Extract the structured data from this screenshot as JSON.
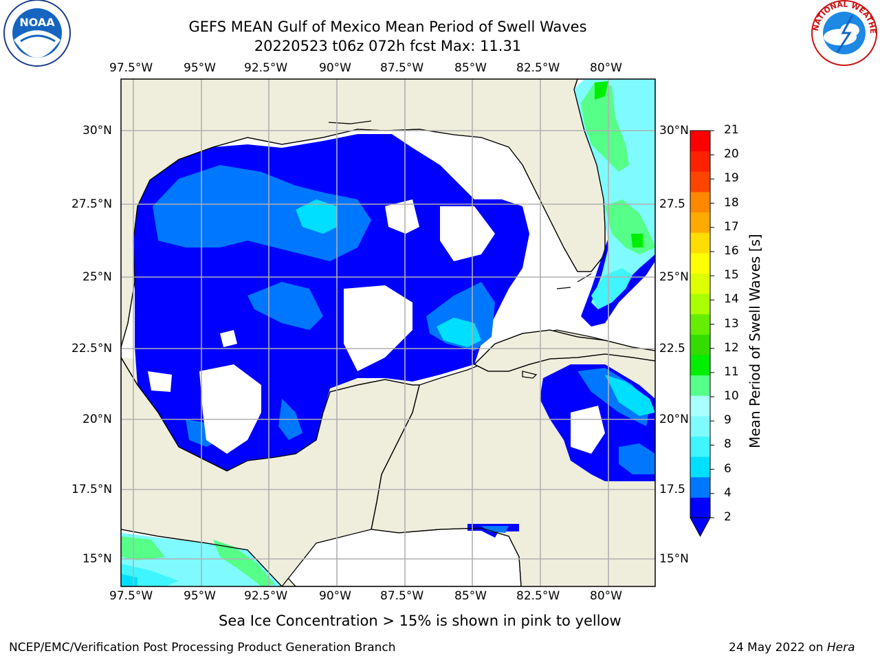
{
  "title": {
    "line1": "GEFS MEAN Gulf of Mexico Mean Period of Swell Waves",
    "line2": "20220523 t06z 072h fcst   Max: 11.31"
  },
  "map": {
    "lon_labels": [
      "97.5°W",
      "95°W",
      "92.5°W",
      "90°W",
      "87.5°W",
      "85°W",
      "82.5°W",
      "80°W"
    ],
    "lat_labels": [
      "30°N",
      "27.5°N",
      "25°N",
      "22.5°N",
      "20°N",
      "17.5°N",
      "15°N"
    ],
    "lat_labels_right": [
      "30°N",
      "27.5",
      "25°N",
      "22.5",
      "20°N",
      "17.5",
      "15°N"
    ],
    "land_color": "#efeedd",
    "ocean_color": "#ffffff",
    "grid_color": "#b0b0b0"
  },
  "colorbar": {
    "label": "Mean Period of Swell Waves [s]",
    "ticks": [
      "2",
      "4",
      "6",
      "8",
      "9",
      "10",
      "11",
      "12",
      "13",
      "14",
      "15",
      "16",
      "17",
      "18",
      "19",
      "20",
      "21"
    ],
    "colors": [
      "#0000ff",
      "#0077ff",
      "#00dfff",
      "#3ff5ff",
      "#7ffbff",
      "#a8ffff",
      "#55ff88",
      "#00ee00",
      "#33dd00",
      "#66ee00",
      "#aaff00",
      "#ddff00",
      "#ffff00",
      "#ffdd00",
      "#ffaa00",
      "#ff8800",
      "#ff4400",
      "#ff2200",
      "#ff0000"
    ],
    "extend_color": "#0000ff"
  },
  "caption": "Sea Ice Concentration > 15% is shown in pink to yellow",
  "footer": {
    "left": "NCEP/EMC/Verification Post Processing Product Generation Branch",
    "date": "24 May 2022 on",
    "machine": "Hera"
  },
  "logos": {
    "left_text": "NOAA",
    "right_text": "NATIONAL WEATHER SERVICE"
  }
}
